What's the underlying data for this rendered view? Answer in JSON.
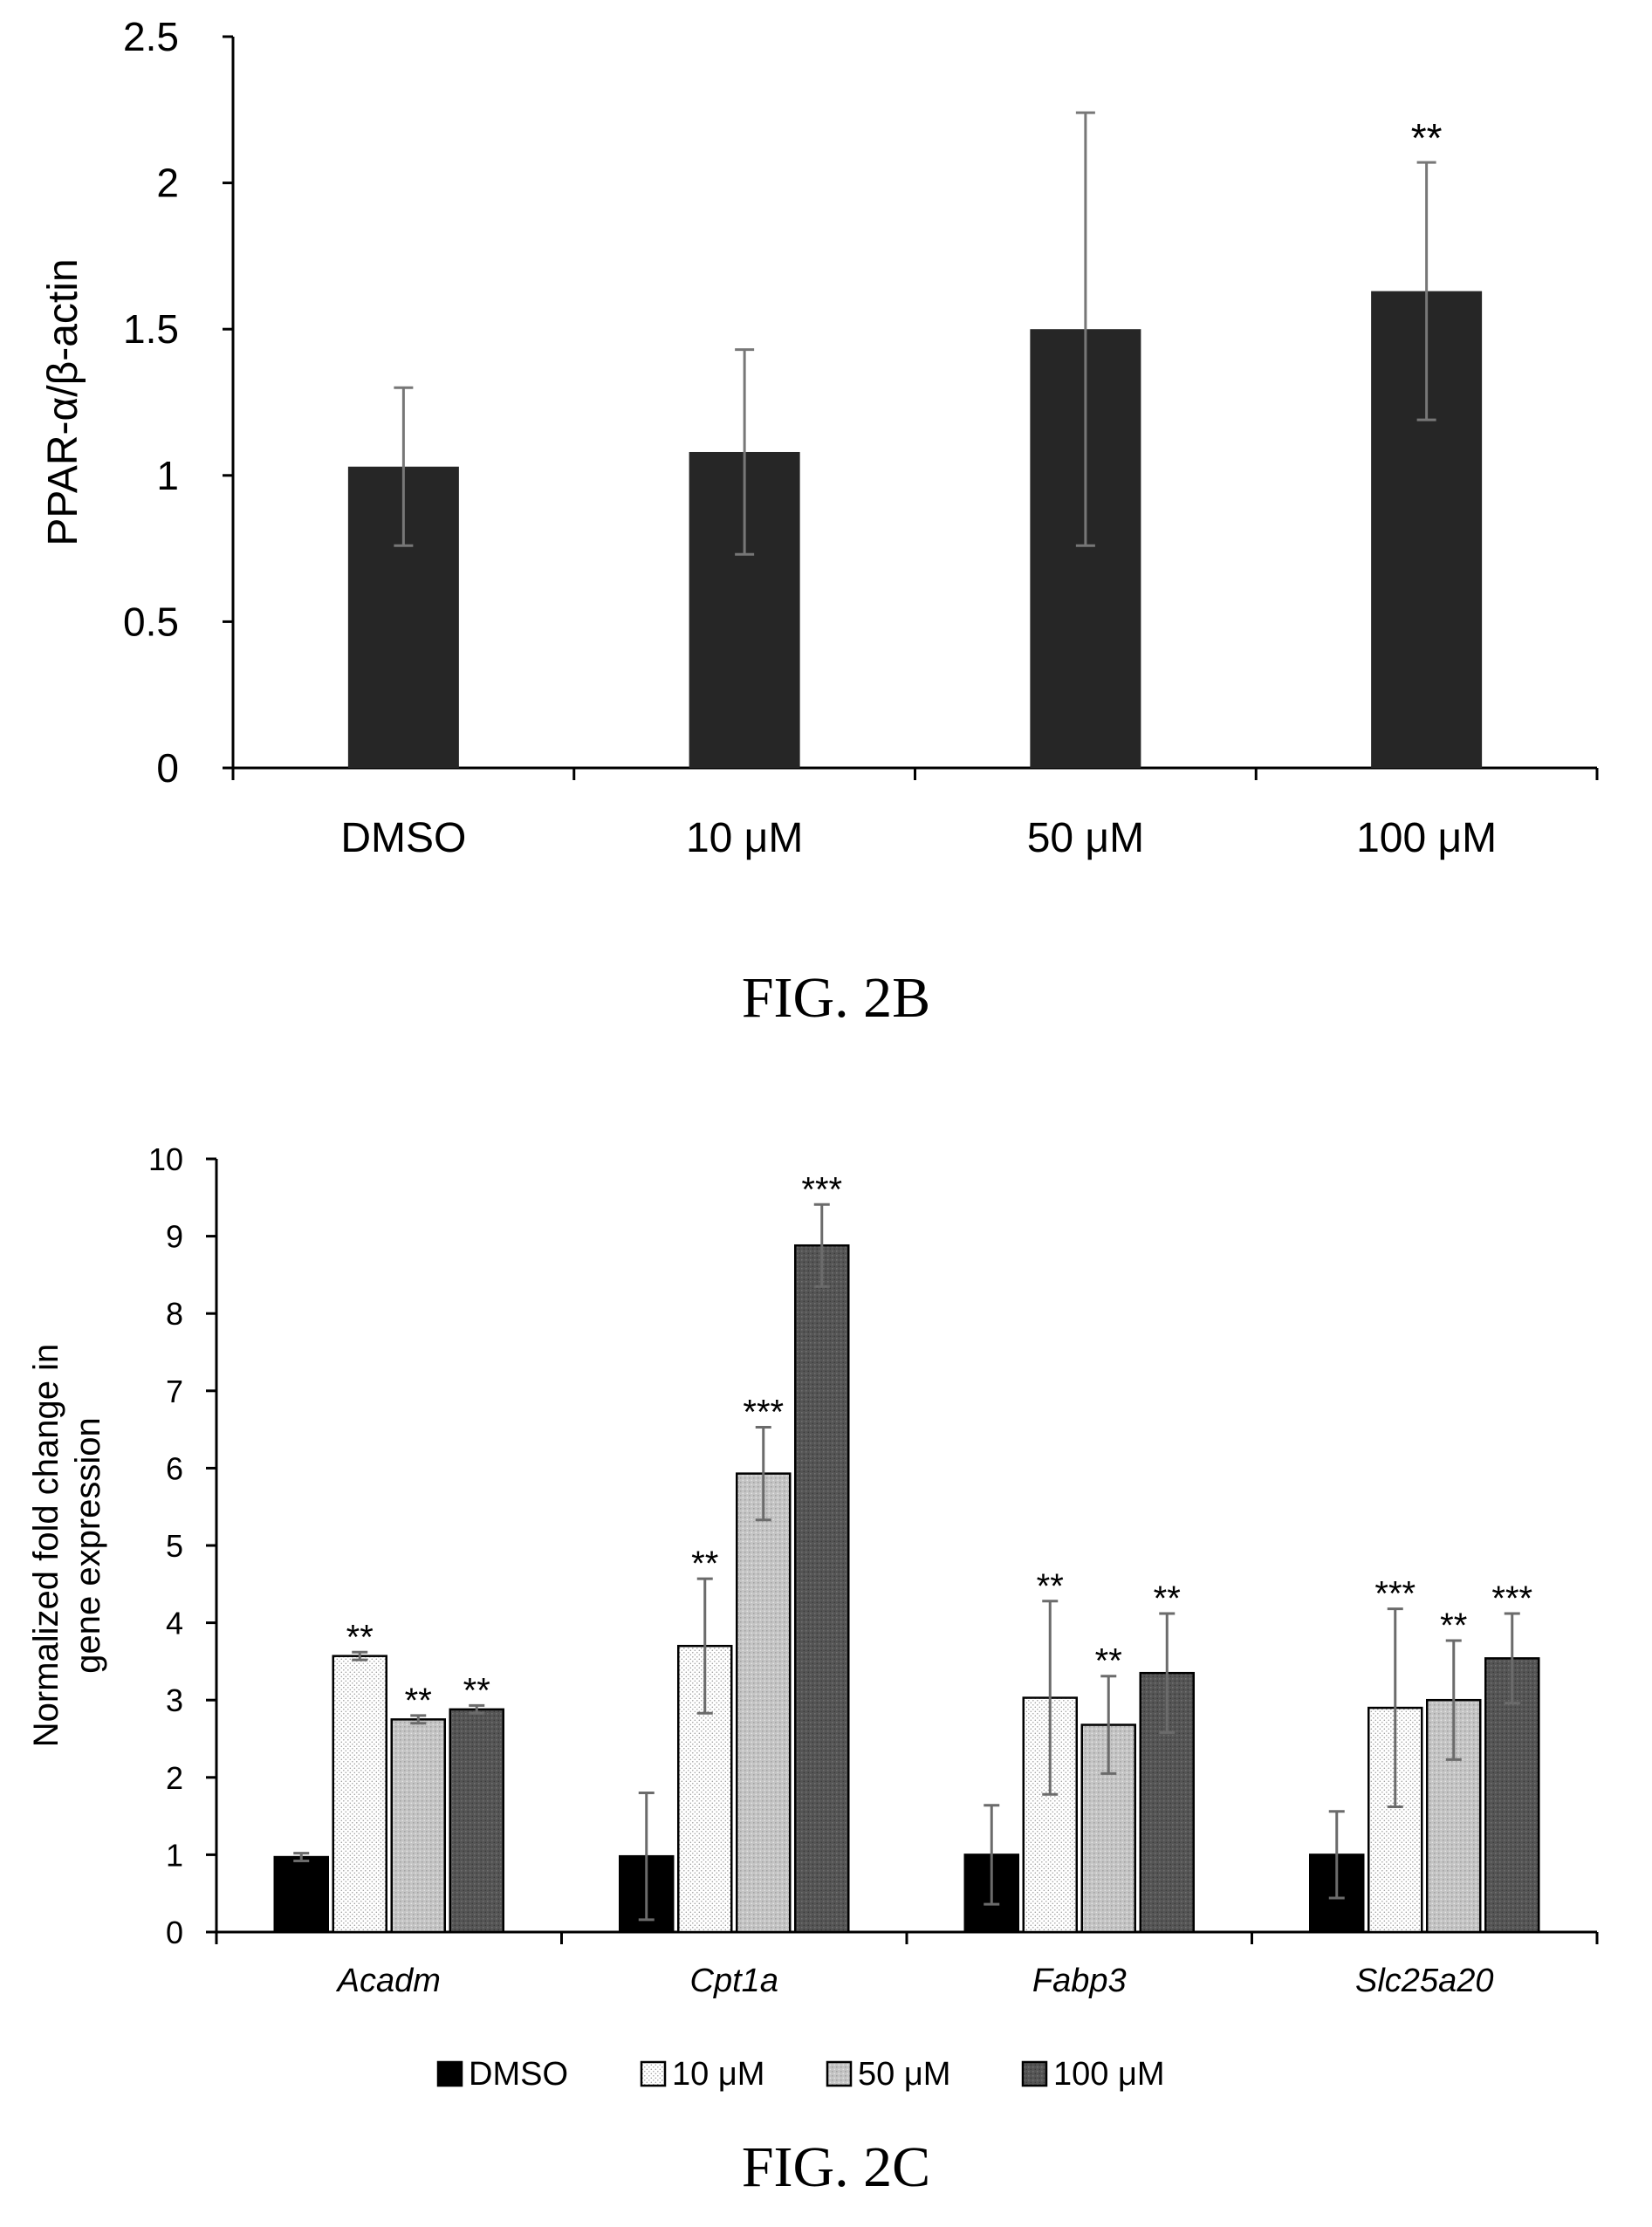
{
  "chart_data": [
    {
      "type": "bar",
      "ylabel": "PPAR-α/β-actin",
      "ylim": [
        0,
        2.5
      ],
      "yticks": [
        "0",
        "0.5",
        "1",
        "1.5",
        "2",
        "2.5"
      ],
      "categories": [
        "DMSO",
        "10 μM",
        "50 μM",
        "100 μM"
      ],
      "values": [
        1.03,
        1.08,
        1.5,
        1.63
      ],
      "error": [
        0.27,
        0.35,
        0.74,
        0.44
      ],
      "annotations": [
        "",
        "",
        "",
        "**"
      ],
      "bar_color": "#262626",
      "grid": false,
      "caption": "FIG. 2B"
    },
    {
      "type": "bar",
      "ylabel_lines": [
        "Normalized fold change in",
        "gene expression"
      ],
      "ylim": [
        0,
        10
      ],
      "yticks": [
        "0",
        "1",
        "2",
        "3",
        "4",
        "5",
        "6",
        "7",
        "8",
        "9",
        "10"
      ],
      "categories": [
        "Acadm",
        "Cpt1a",
        "Fabp3",
        "Slc25a20"
      ],
      "series": [
        {
          "name": "DMSO",
          "values": [
            0.97,
            0.98,
            1.0,
            1.0
          ],
          "error": [
            0.05,
            0.82,
            0.64,
            0.56
          ],
          "annotations": [
            "",
            "",
            "",
            ""
          ],
          "color": "#000000",
          "pattern": "solid"
        },
        {
          "name": "10 μM",
          "values": [
            3.57,
            3.7,
            3.03,
            2.9
          ],
          "error": [
            0.05,
            0.87,
            1.25,
            1.28
          ],
          "annotations": [
            "**",
            "**",
            "**",
            "***"
          ],
          "color": "#ffffff",
          "pattern": "dots"
        },
        {
          "name": "50 μM",
          "values": [
            2.75,
            5.93,
            2.68,
            3.0
          ],
          "error": [
            0.05,
            0.6,
            0.63,
            0.77
          ],
          "annotations": [
            "**",
            "***",
            "**",
            "**"
          ],
          "color": "#c4c4c4",
          "pattern": "dots"
        },
        {
          "name": "100 μM",
          "values": [
            2.88,
            8.88,
            3.35,
            3.54
          ],
          "error": [
            0.05,
            0.53,
            0.77,
            0.58
          ],
          "annotations": [
            "**",
            "***",
            "**",
            "***"
          ],
          "color": "#555555",
          "pattern": "dots"
        }
      ],
      "legend_position": "bottom",
      "grid": false,
      "caption": "FIG. 2C"
    }
  ]
}
